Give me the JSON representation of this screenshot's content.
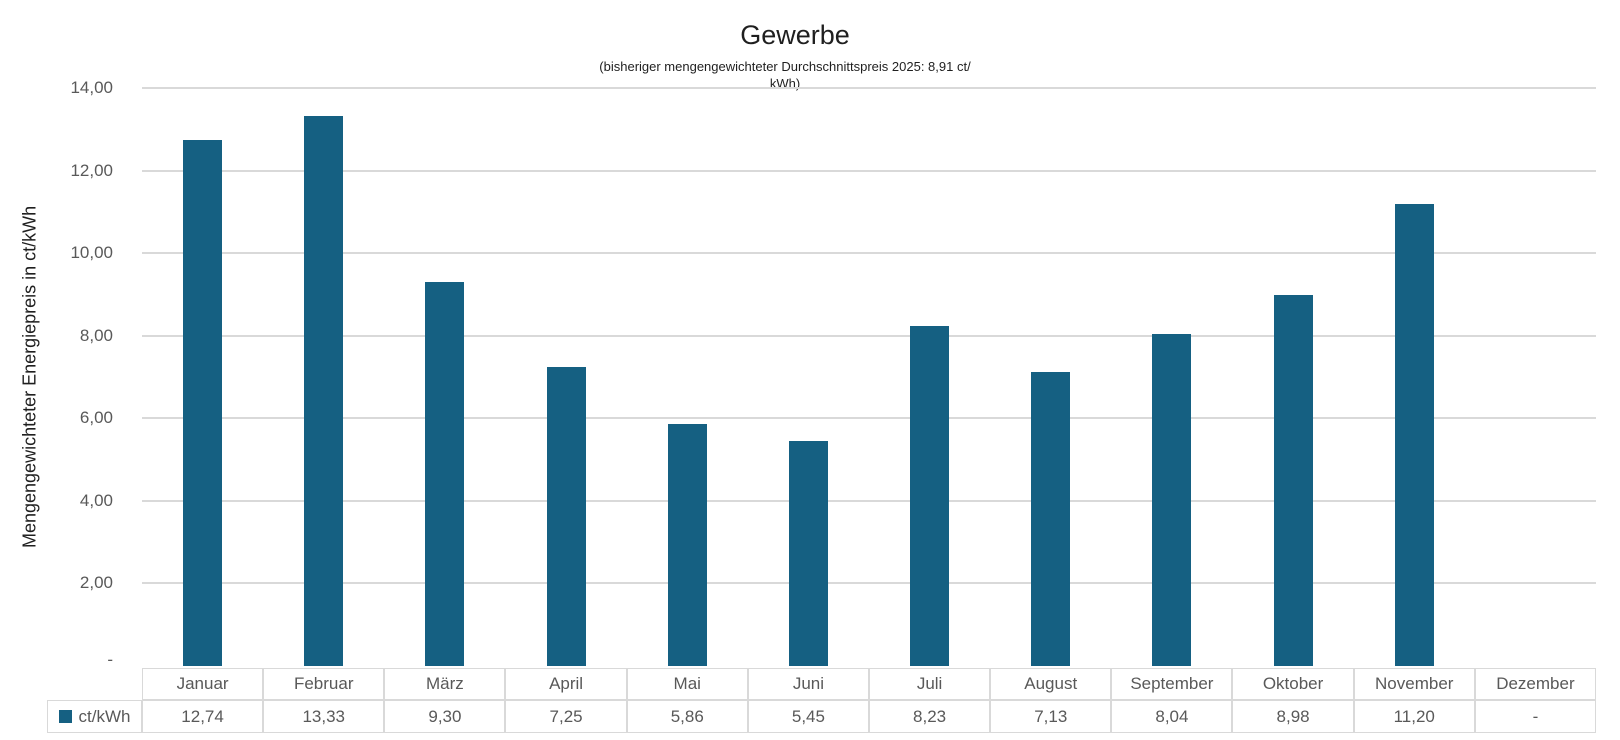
{
  "chart_data": {
    "type": "bar",
    "title": "Gewerbe",
    "subtitle": "(bisheriger mengengewichteter Durchschnittspreis 2025: 8,91 ct/kWh)",
    "subtitle_lines": [
      "(bisheriger mengengewichteter Durchschnittspreis 2025: 8,91 ct/",
      "kWh)"
    ],
    "ylabel": "Mengengewichteter Energiepreis in ct/kWh",
    "xlabel": "",
    "categories": [
      "Januar",
      "Februar",
      "März",
      "April",
      "Mai",
      "Juni",
      "Juli",
      "August",
      "September",
      "Oktober",
      "November",
      "Dezember"
    ],
    "series": [
      {
        "name": "ct/kWh",
        "values": [
          12.74,
          13.33,
          9.3,
          7.25,
          5.86,
          5.45,
          8.23,
          7.13,
          8.04,
          8.98,
          11.2,
          null
        ],
        "value_labels": [
          "12,74",
          "13,33",
          "9,30",
          "7,25",
          "5,86",
          "5,45",
          "8,23",
          "7,13",
          "8,04",
          "8,98",
          "11,20",
          "-"
        ]
      }
    ],
    "ylim": [
      0,
      14
    ],
    "yticks": [
      {
        "label": "14,00",
        "value": 14
      },
      {
        "label": "12,00",
        "value": 12
      },
      {
        "label": "10,00",
        "value": 10
      },
      {
        "label": "8,00",
        "value": 8
      },
      {
        "label": "6,00",
        "value": 6
      },
      {
        "label": "4,00",
        "value": 4
      },
      {
        "label": "2,00",
        "value": 2
      },
      {
        "label": "-",
        "value": 0
      }
    ],
    "grid": true,
    "legend_position": "data-table-left",
    "colors": {
      "bar": "#156082",
      "gridline": "#D9D9D9",
      "table_border": "#D9D9D9",
      "tick_text": "#595959",
      "title_text": "#1f1f1f"
    }
  }
}
